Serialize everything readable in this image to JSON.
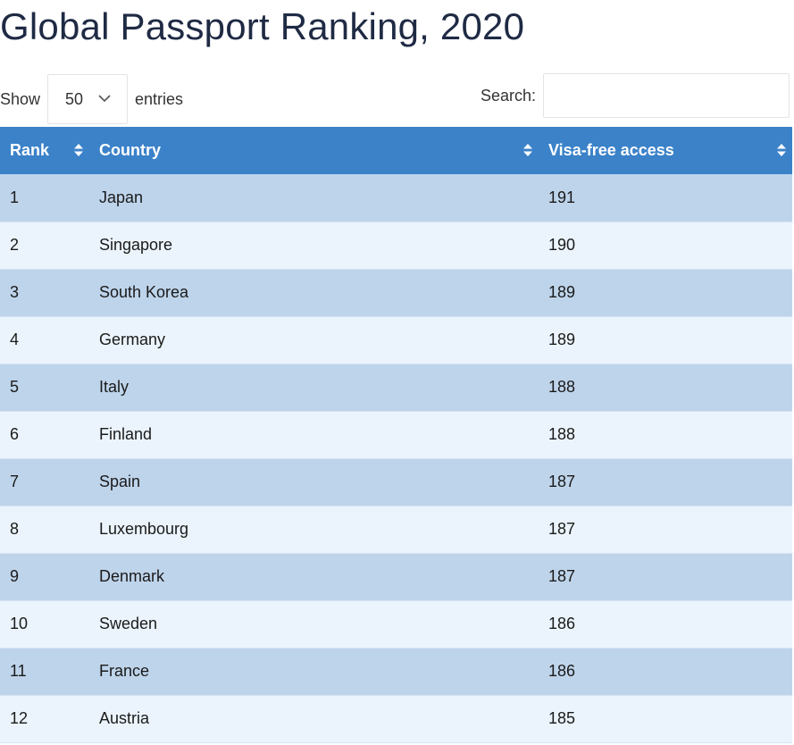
{
  "page": {
    "title": "Global Passport Ranking, 2020"
  },
  "controls": {
    "show_label": "Show",
    "page_length": "50",
    "entries_label": "entries",
    "search_label": "Search:",
    "search_value": ""
  },
  "table": {
    "headers": [
      "Rank",
      "Country",
      "Visa-free access"
    ],
    "rows": [
      [
        "1",
        "Japan",
        "191"
      ],
      [
        "2",
        "Singapore",
        "190"
      ],
      [
        "3",
        "South Korea",
        "189"
      ],
      [
        "4",
        "Germany",
        "189"
      ],
      [
        "5",
        "Italy",
        "188"
      ],
      [
        "6",
        "Finland",
        "188"
      ],
      [
        "7",
        "Spain",
        "187"
      ],
      [
        "8",
        "Luxembourg",
        "187"
      ],
      [
        "9",
        "Denmark",
        "187"
      ],
      [
        "10",
        "Sweden",
        "186"
      ],
      [
        "11",
        "France",
        "186"
      ],
      [
        "12",
        "Austria",
        "185"
      ]
    ]
  },
  "colors": {
    "header_bg": "#3b82c9",
    "row_odd_bg": "#bed4eb",
    "row_even_bg": "#ebf4fc",
    "title_color": "#1f2a44"
  },
  "icons": {
    "sort": "sort-icon",
    "dropdown": "chevron-down-icon"
  }
}
